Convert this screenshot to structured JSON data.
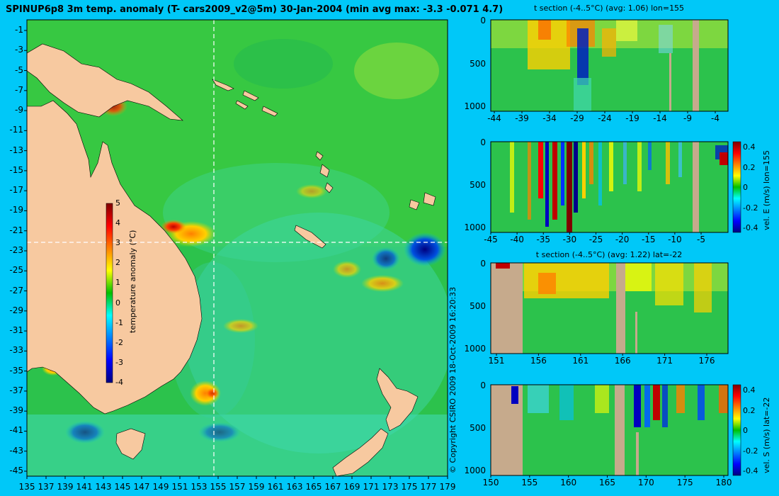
{
  "title": "SPINUP6p8 3m temp. anomaly (T- cars2009_v2@5m) 30-Jan-2004 (min avg max: -3.3 -0.071 4.7)",
  "copyright": "© Copyright CSIRO 2009   18-Oct-2009 16:20:33",
  "colors": {
    "background": "#00C8F8",
    "land": "#F7C9A0",
    "section_land": "#C6AA8C"
  },
  "colormap": [
    "#000080",
    "#0000FF",
    "#0080FF",
    "#00FFFF",
    "#00C000",
    "#FFFF00",
    "#FF8000",
    "#FF0000",
    "#800000"
  ],
  "chart_data": [
    {
      "type": "heatmap",
      "name": "map",
      "xticks": [
        "135",
        "137",
        "139",
        "141",
        "143",
        "145",
        "147",
        "149",
        "151",
        "153",
        "155",
        "157",
        "159",
        "161",
        "163",
        "165",
        "167",
        "169",
        "171",
        "173",
        "175",
        "177",
        "179"
      ],
      "yticks": [
        "-1",
        "-3",
        "-5",
        "-7",
        "-9",
        "-11",
        "-13",
        "-15",
        "-17",
        "-19",
        "-21",
        "-23",
        "-25",
        "-27",
        "-29",
        "-31",
        "-33",
        "-35",
        "-37",
        "-39",
        "-41",
        "-43",
        "-45"
      ],
      "xlim": [
        135,
        180
      ],
      "ylim": [
        -45,
        0
      ],
      "section_lon": 155,
      "section_lat": -22,
      "colorbar": {
        "label": "temperature anomaly (°C)",
        "ticks": [
          "5",
          "4",
          "3",
          "2",
          "1",
          "0",
          "-1",
          "-2",
          "-3",
          "-4"
        ],
        "range": [
          -4,
          5
        ]
      }
    },
    {
      "type": "heatmap",
      "name": "t-section-lon",
      "title": "t section (-4..5°C) (avg: 1.06) lon=155",
      "xticks": [
        "-44",
        "-39",
        "-34",
        "-29",
        "-24",
        "-19",
        "-14",
        "-9",
        "-4"
      ],
      "yticks": [
        "0",
        "500",
        "1000"
      ]
    },
    {
      "type": "heatmap",
      "name": "vel-e-lon",
      "xticks": [
        "-45",
        "-40",
        "-35",
        "-30",
        "-25",
        "-20",
        "-15",
        "-10",
        "-5"
      ],
      "yticks": [
        "0",
        "500",
        "1000"
      ],
      "colorbar": {
        "label": "vel. E (m/s) lon=155",
        "ticks": [
          "0.4",
          "0.2",
          "0",
          "-0.2",
          "-0.4"
        ]
      }
    },
    {
      "type": "heatmap",
      "name": "t-section-lat",
      "title": "t section (-4..5°C) (avg: 1.22) lat=-22",
      "xticks": [
        "151",
        "156",
        "161",
        "166",
        "171",
        "176"
      ],
      "yticks": [
        "0",
        "500",
        "1000"
      ]
    },
    {
      "type": "heatmap",
      "name": "vel-s-lat",
      "xticks": [
        "150",
        "155",
        "160",
        "165",
        "170",
        "175",
        "180"
      ],
      "yticks": [
        "0",
        "500",
        "1000"
      ],
      "colorbar": {
        "label": "vel. S (m/s) lat=-22",
        "ticks": [
          "0.4",
          "0.2",
          "0",
          "-0.2",
          "-0.4"
        ]
      }
    }
  ]
}
